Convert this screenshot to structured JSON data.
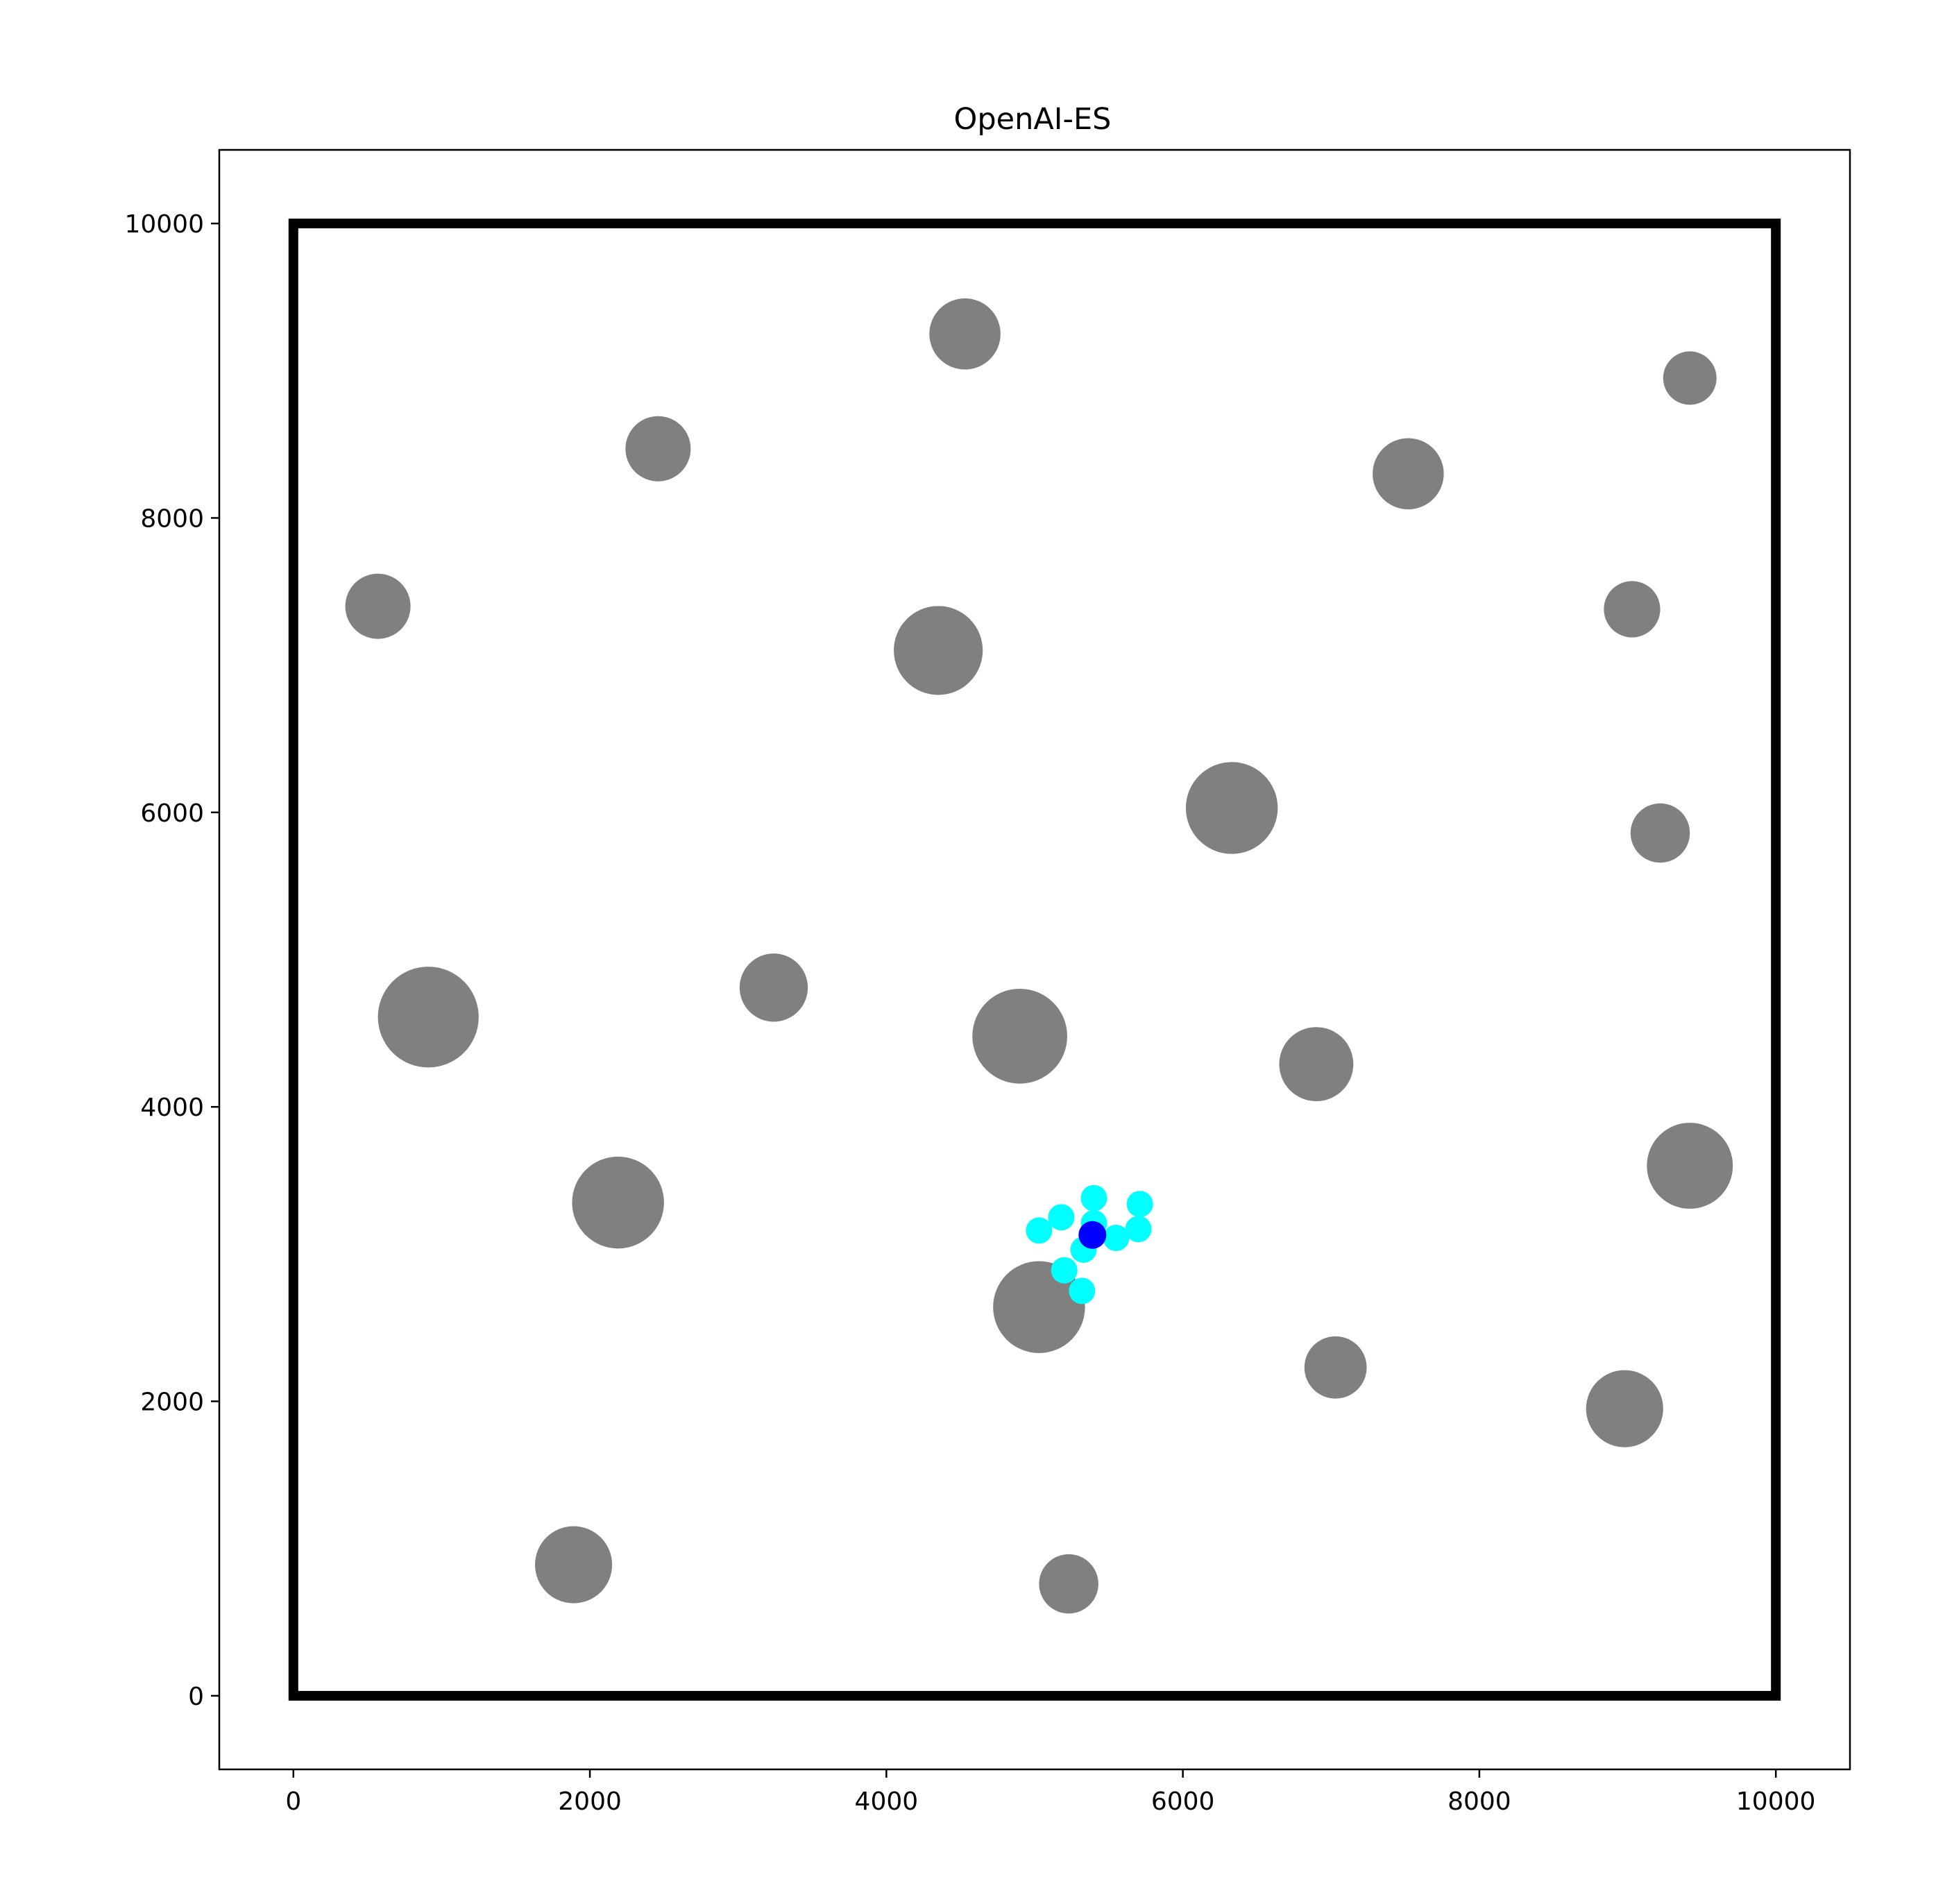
{
  "chart_data": {
    "type": "scatter",
    "title": "OpenAI-ES",
    "xlabel": "",
    "ylabel": "",
    "xlim": [
      -500,
      10500
    ],
    "ylim": [
      -500,
      10500
    ],
    "x_ticks": [
      0,
      2000,
      4000,
      6000,
      8000,
      10000
    ],
    "y_ticks": [
      0,
      2000,
      4000,
      6000,
      8000,
      10000
    ],
    "x_tick_labels": [
      "0",
      "2000",
      "4000",
      "6000",
      "8000",
      "10000"
    ],
    "y_tick_labels": [
      "0",
      "2000",
      "4000",
      "6000",
      "8000",
      "10000"
    ],
    "grid": false,
    "boundary": {
      "x0": 0,
      "y0": 0,
      "x1": 10000,
      "y1": 10000,
      "color": "#000000"
    },
    "obstacles": {
      "color": "#808080",
      "points": [
        {
          "x": 4530,
          "y": 9250,
          "r": 240
        },
        {
          "x": 9420,
          "y": 8950,
          "r": 180
        },
        {
          "x": 2460,
          "y": 8470,
          "r": 220
        },
        {
          "x": 7520,
          "y": 8300,
          "r": 240
        },
        {
          "x": 570,
          "y": 7400,
          "r": 220
        },
        {
          "x": 9030,
          "y": 7380,
          "r": 190
        },
        {
          "x": 4350,
          "y": 7100,
          "r": 300
        },
        {
          "x": 6330,
          "y": 6030,
          "r": 310
        },
        {
          "x": 9220,
          "y": 5860,
          "r": 200
        },
        {
          "x": 910,
          "y": 4610,
          "r": 340
        },
        {
          "x": 3240,
          "y": 4810,
          "r": 230
        },
        {
          "x": 4900,
          "y": 4480,
          "r": 320
        },
        {
          "x": 6900,
          "y": 4290,
          "r": 250
        },
        {
          "x": 9420,
          "y": 3600,
          "r": 290
        },
        {
          "x": 2190,
          "y": 3350,
          "r": 310
        },
        {
          "x": 5030,
          "y": 2640,
          "r": 310
        },
        {
          "x": 7030,
          "y": 2230,
          "r": 210
        },
        {
          "x": 8980,
          "y": 1950,
          "r": 260
        },
        {
          "x": 1890,
          "y": 890,
          "r": 260
        },
        {
          "x": 5230,
          "y": 760,
          "r": 200
        }
      ]
    },
    "samples": {
      "color": "#00ffff",
      "points": [
        {
          "x": 5400,
          "y": 3380
        },
        {
          "x": 5710,
          "y": 3340
        },
        {
          "x": 5180,
          "y": 3250
        },
        {
          "x": 5400,
          "y": 3210
        },
        {
          "x": 5030,
          "y": 3160
        },
        {
          "x": 5700,
          "y": 3170
        },
        {
          "x": 5550,
          "y": 3110
        },
        {
          "x": 5330,
          "y": 3030
        },
        {
          "x": 5200,
          "y": 2890
        },
        {
          "x": 5320,
          "y": 2750
        }
      ]
    },
    "mean": {
      "color": "#0000ff",
      "x": 5390,
      "y": 3130
    }
  }
}
